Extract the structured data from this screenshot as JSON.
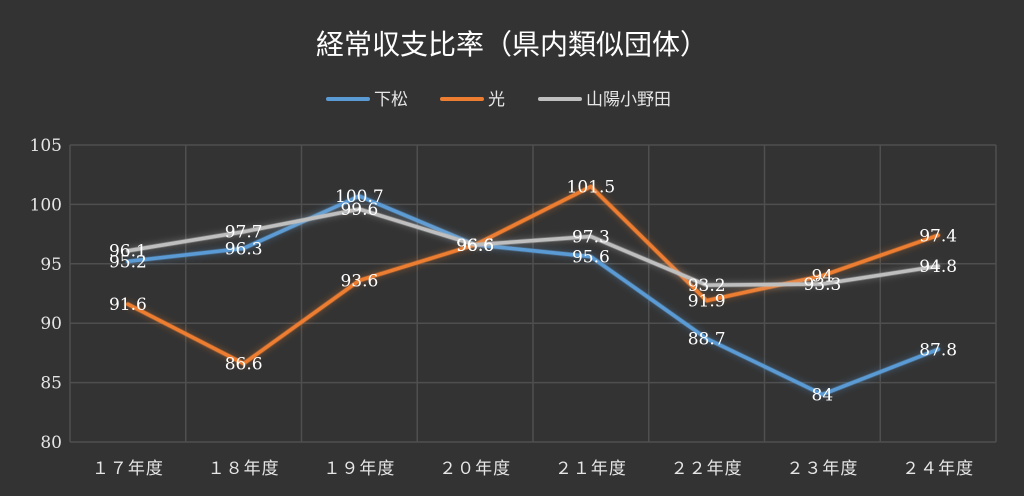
{
  "chart_data": {
    "type": "line",
    "title": "経常収支比率（県内類似団体）",
    "categories": [
      "１７年度",
      "１８年度",
      "１９年度",
      "２０年度",
      "２１年度",
      "２２年度",
      "２３年度",
      "２４年度"
    ],
    "ylim": [
      80,
      105
    ],
    "yticks": [
      80,
      85,
      90,
      95,
      100,
      105
    ],
    "grid": true,
    "legend_position": "top",
    "series": [
      {
        "name": "下松",
        "color": "#5b9bd5",
        "values": [
          95.2,
          96.3,
          100.7,
          96.6,
          95.6,
          88.7,
          84,
          87.8
        ]
      },
      {
        "name": "光",
        "color": "#ed7d31",
        "values": [
          91.6,
          86.6,
          93.6,
          96.6,
          101.5,
          91.9,
          94,
          97.4
        ]
      },
      {
        "name": "山陽小野田",
        "color": "#bfbfbf",
        "values": [
          96.1,
          97.7,
          99.6,
          96.6,
          97.3,
          93.2,
          93.3,
          94.8
        ]
      }
    ]
  }
}
